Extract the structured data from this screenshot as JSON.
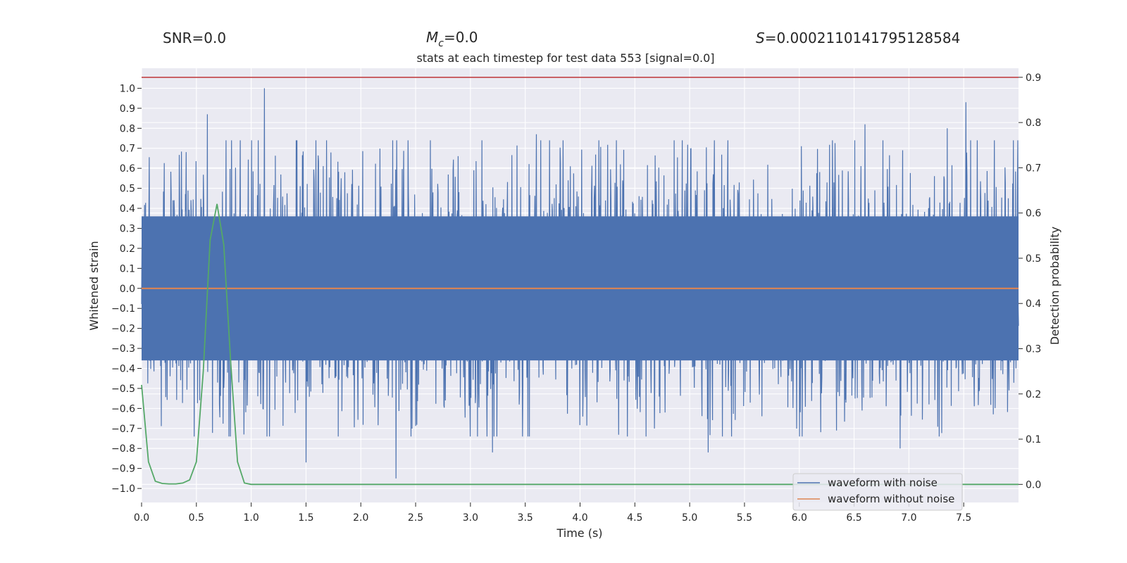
{
  "header": {
    "snr_text": "SNR=0.0",
    "mc_symbol": "M",
    "mc_sub": "c",
    "mc_value": "=0.0",
    "s_symbol": "S",
    "s_value": "=0.0002110141795128584"
  },
  "chart_data": {
    "type": "line",
    "title": "stats at each timestep for test data 553 [signal=0.0]",
    "xlabel": "Time (s)",
    "ylabel": "Whitened strain",
    "y2label": "Detection probability",
    "xlim": [
      0.0,
      8.0
    ],
    "ylim": [
      -1.07,
      1.1
    ],
    "y2lim": [
      -0.04,
      0.92
    ],
    "x_ticks": [
      "0.0",
      "0.5",
      "1.0",
      "1.5",
      "2.0",
      "2.5",
      "3.0",
      "3.5",
      "4.0",
      "4.5",
      "5.0",
      "5.5",
      "6.0",
      "6.5",
      "7.0",
      "7.5"
    ],
    "y_ticks": [
      "1.0",
      "0.9",
      "0.8",
      "0.7",
      "0.6",
      "0.5",
      "0.4",
      "0.3",
      "0.2",
      "0.1",
      "0.0",
      "−0.1",
      "−0.2",
      "−0.3",
      "−0.4",
      "−0.5",
      "−0.6",
      "−0.7",
      "−0.8",
      "−0.9",
      "−1.0"
    ],
    "y2_ticks": [
      "0.9",
      "0.8",
      "0.7",
      "0.6",
      "0.5",
      "0.4",
      "0.3",
      "0.2",
      "0.1",
      "0.0"
    ],
    "legend": {
      "location": "lower-right",
      "entries": [
        "waveform with noise",
        "waveform without noise"
      ]
    },
    "series": [
      {
        "name": "waveform with noise",
        "color": "#4c72b0",
        "description": "dense whitened noisy strain, typical envelope about +/-0.45",
        "peaks": [
          {
            "x": 0.6,
            "y": 0.87
          },
          {
            "x": 1.12,
            "y": 1.0
          },
          {
            "x": 3.6,
            "y": 0.77
          },
          {
            "x": 6.6,
            "y": 0.82
          },
          {
            "x": 7.35,
            "y": 0.8
          },
          {
            "x": 7.52,
            "y": 0.93
          }
        ],
        "troughs": [
          {
            "x": 2.32,
            "y": -0.95
          },
          {
            "x": 1.5,
            "y": -0.87
          },
          {
            "x": 5.17,
            "y": -0.82
          },
          {
            "x": 6.92,
            "y": -0.8
          },
          {
            "x": 3.2,
            "y": -0.82
          }
        ]
      },
      {
        "name": "waveform without noise",
        "color": "#dd8452",
        "x": [
          0.0,
          8.0
        ],
        "y": [
          0.0,
          0.0
        ]
      },
      {
        "name": "detection probability",
        "axis": "right",
        "color": "#55a868",
        "x": [
          0.0,
          0.063,
          0.125,
          0.188,
          0.25,
          0.313,
          0.375,
          0.438,
          0.5,
          0.563,
          0.625,
          0.688,
          0.75,
          0.813,
          0.875,
          0.938,
          1.0,
          8.0
        ],
        "y": [
          0.22,
          0.05,
          0.007,
          0.002,
          0.001,
          0.001,
          0.003,
          0.01,
          0.05,
          0.25,
          0.54,
          0.62,
          0.53,
          0.27,
          0.05,
          0.003,
          0.0,
          0.0
        ]
      },
      {
        "name": "threshold",
        "axis": "right",
        "color": "#c44e52",
        "x": [
          0.0,
          8.0
        ],
        "y": [
          0.9,
          0.9
        ]
      }
    ]
  }
}
